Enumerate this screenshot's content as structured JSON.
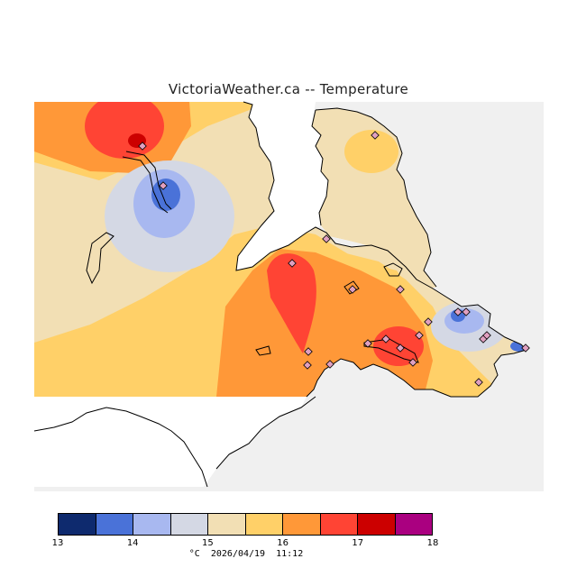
{
  "title": "VictoriaWeather.ca -- Temperature",
  "colors": {
    "land_out": "#f0f0f0",
    "water": "#ffffff",
    "coast": "#000000",
    "station": "#e0a0c0"
  },
  "legend": {
    "colors": [
      "#0e2a6e",
      "#4a72d8",
      "#a8b8f0",
      "#d4d8e4",
      "#f2dfb4",
      "#ffd068",
      "#ff9838",
      "#ff4434",
      "#cc0000",
      "#aa0080"
    ],
    "tick_labels": [
      "13",
      "14",
      "15",
      "16",
      "17",
      "18"
    ]
  },
  "footer": {
    "unit": "°C",
    "date": "2026/04/19",
    "time": "11:12"
  }
}
